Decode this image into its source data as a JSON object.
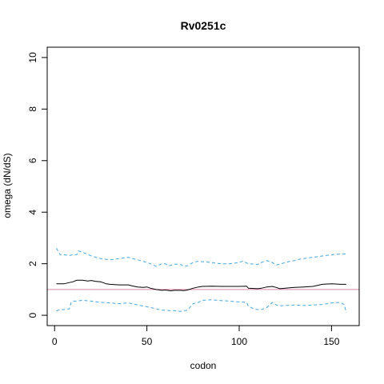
{
  "chart_data": {
    "type": "line",
    "title": "Rv0251c",
    "xlabel": "codon",
    "ylabel": "omega (dN/dS)",
    "xlim": [
      -4,
      165
    ],
    "ylim": [
      -0.4,
      10.4
    ],
    "xticks": [
      0,
      50,
      100,
      150
    ],
    "yticks": [
      0,
      2,
      4,
      6,
      8,
      10
    ],
    "grid": false,
    "legend": "none",
    "reference_line": {
      "y": 1,
      "color": "#d987a6"
    },
    "series": [
      {
        "color": "#000000",
        "style": "solid",
        "x": [
          1,
          5,
          8,
          10,
          12,
          15,
          18,
          20,
          22,
          25,
          28,
          30,
          35,
          40,
          42,
          45,
          48,
          50,
          52,
          55,
          58,
          60,
          63,
          65,
          68,
          70,
          72,
          75,
          78,
          80,
          85,
          90,
          95,
          100,
          104,
          105,
          108,
          110,
          112,
          115,
          118,
          120,
          122,
          125,
          128,
          130,
          135,
          140,
          145,
          150,
          155,
          158
        ],
        "y": [
          1.22,
          1.22,
          1.27,
          1.3,
          1.36,
          1.36,
          1.33,
          1.35,
          1.32,
          1.3,
          1.22,
          1.2,
          1.18,
          1.18,
          1.14,
          1.1,
          1.08,
          1.1,
          1.05,
          1.0,
          0.97,
          0.98,
          0.95,
          0.97,
          0.97,
          0.96,
          0.98,
          1.05,
          1.1,
          1.12,
          1.13,
          1.12,
          1.12,
          1.12,
          1.13,
          1.05,
          1.04,
          1.03,
          1.05,
          1.1,
          1.12,
          1.08,
          1.03,
          1.05,
          1.07,
          1.08,
          1.1,
          1.12,
          1.2,
          1.22,
          1.2,
          1.2
        ]
      },
      {
        "color": "#41a9e0",
        "style": "dashed",
        "x": [
          1,
          3,
          5,
          8,
          10,
          12,
          13,
          15,
          20,
          25,
          30,
          35,
          40,
          42,
          45,
          50,
          52,
          55,
          58,
          60,
          62,
          65,
          68,
          70,
          72,
          75,
          78,
          80,
          85,
          90,
          95,
          100,
          102,
          105,
          110,
          112,
          115,
          118,
          120,
          122,
          125,
          128,
          130,
          133,
          135,
          140,
          145,
          150,
          155,
          158
        ],
        "y": [
          2.6,
          2.35,
          2.35,
          2.32,
          2.35,
          2.35,
          2.5,
          2.45,
          2.3,
          2.2,
          2.15,
          2.2,
          2.25,
          2.2,
          2.15,
          2.05,
          2.0,
          1.9,
          2.0,
          2.0,
          1.92,
          1.98,
          1.98,
          1.9,
          1.92,
          2.05,
          2.1,
          2.08,
          2.05,
          2.0,
          2.0,
          2.05,
          2.1,
          2.0,
          1.97,
          2.05,
          2.12,
          2.05,
          1.95,
          1.98,
          2.05,
          2.1,
          2.12,
          2.18,
          2.2,
          2.25,
          2.3,
          2.35,
          2.38,
          2.38
        ]
      },
      {
        "color": "#41a9e0",
        "style": "dashed",
        "x": [
          1,
          3,
          5,
          8,
          9,
          10,
          12,
          15,
          20,
          25,
          30,
          35,
          40,
          42,
          45,
          50,
          52,
          55,
          58,
          60,
          62,
          65,
          68,
          70,
          72,
          75,
          78,
          80,
          85,
          90,
          95,
          100,
          104,
          105,
          108,
          110,
          112,
          115,
          118,
          120,
          122,
          125,
          130,
          135,
          140,
          145,
          150,
          155,
          157,
          158
        ],
        "y": [
          0.17,
          0.22,
          0.22,
          0.25,
          0.5,
          0.55,
          0.55,
          0.58,
          0.55,
          0.5,
          0.48,
          0.45,
          0.48,
          0.45,
          0.4,
          0.33,
          0.3,
          0.25,
          0.2,
          0.2,
          0.18,
          0.18,
          0.15,
          0.17,
          0.2,
          0.45,
          0.5,
          0.58,
          0.6,
          0.57,
          0.55,
          0.52,
          0.5,
          0.35,
          0.25,
          0.22,
          0.22,
          0.3,
          0.5,
          0.4,
          0.37,
          0.38,
          0.4,
          0.38,
          0.4,
          0.42,
          0.48,
          0.5,
          0.4,
          0.1
        ]
      }
    ]
  }
}
